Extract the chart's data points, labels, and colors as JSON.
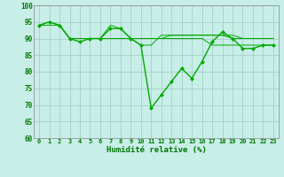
{
  "xlabel": "Humidité relative (%)",
  "xlim": [
    -0.5,
    23.5
  ],
  "ylim": [
    60,
    100
  ],
  "yticks": [
    60,
    65,
    70,
    75,
    80,
    85,
    90,
    95,
    100
  ],
  "bg_color": "#c8eee8",
  "grid_color": "#a0c8c0",
  "line_color": "#00aa00",
  "series": [
    [
      94,
      95,
      94,
      90,
      89,
      90,
      90,
      93,
      93,
      90,
      88,
      69,
      73,
      77,
      81,
      78,
      83,
      89,
      92,
      90,
      87,
      87,
      88,
      88
    ],
    [
      94,
      95,
      94,
      90,
      90,
      90,
      90,
      94,
      93,
      90,
      88,
      88,
      91,
      91,
      91,
      91,
      91,
      91,
      91,
      90,
      90,
      90,
      90,
      90
    ],
    [
      94,
      94,
      94,
      90,
      90,
      90,
      90,
      90,
      90,
      90,
      90,
      90,
      90,
      90,
      90,
      90,
      90,
      88,
      88,
      88,
      88,
      88,
      88,
      88
    ],
    [
      94,
      94,
      94,
      90,
      90,
      90,
      90,
      90,
      90,
      90,
      90,
      90,
      90,
      91,
      91,
      91,
      91,
      91,
      91,
      91,
      90,
      90,
      90,
      90
    ]
  ]
}
